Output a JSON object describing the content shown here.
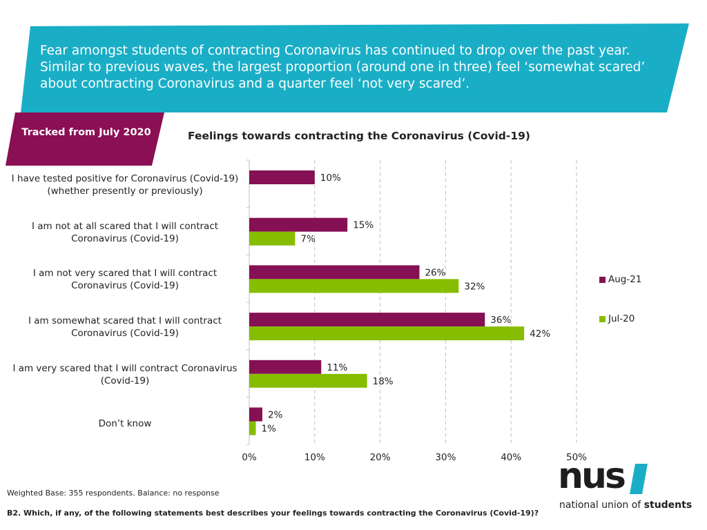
{
  "headline": "Fear amongst students of contracting Coronavirus has continued to drop over the past year. Similar to previous waves, the largest proportion (around one in three) feel ‘somewhat scared’ about contracting Coronavirus and a quarter feel ‘not very scared’.",
  "tracked_badge": "Tracked from July 2020",
  "colors": {
    "banner": "#1aaec6",
    "badge": "#8a0f55",
    "aug21": "#861054",
    "jul20": "#86bd00",
    "grid": "#bfbfbf"
  },
  "chart_data": {
    "type": "bar",
    "orientation": "horizontal",
    "title": "Feelings towards contracting the Coronavirus (Covid-19)",
    "categories": [
      "I have tested positive for Coronavirus (Covid-19) (whether presently or previously)",
      "I am not at all scared that I will contract Coronavirus (Covid-19)",
      "I am not very scared that I will contract Coronavirus (Covid-19)",
      "I am somewhat scared that I will contract Coronavirus (Covid-19)",
      "I am very scared that I will contract Coronavirus (Covid-19)",
      "Don’t know"
    ],
    "series": [
      {
        "name": "Aug-21",
        "values": [
          10,
          15,
          26,
          36,
          11,
          2
        ],
        "labels": [
          "10%",
          "15%",
          "26%",
          "36%",
          "11%",
          "2%"
        ]
      },
      {
        "name": "Jul-20",
        "values": [
          null,
          7,
          32,
          42,
          18,
          1
        ],
        "labels": [
          null,
          "7%",
          "32%",
          "42%",
          "18%",
          "1%"
        ]
      }
    ],
    "xlim": [
      0,
      50
    ],
    "xticks": [
      "0%",
      "10%",
      "20%",
      "30%",
      "40%",
      "50%"
    ],
    "xtick_values": [
      0,
      10,
      20,
      30,
      40,
      50
    ],
    "grid": true,
    "legend_position": "right"
  },
  "footer": {
    "base_note": "Weighted Base: 355 respondents. Balance: no response",
    "question": "B2. Which, if any, of the following statements best describes your feelings towards contracting the Coronavirus (Covid-19)?"
  },
  "logo": {
    "word": "nus",
    "sub_regular": "national union of ",
    "sub_bold": "students"
  }
}
